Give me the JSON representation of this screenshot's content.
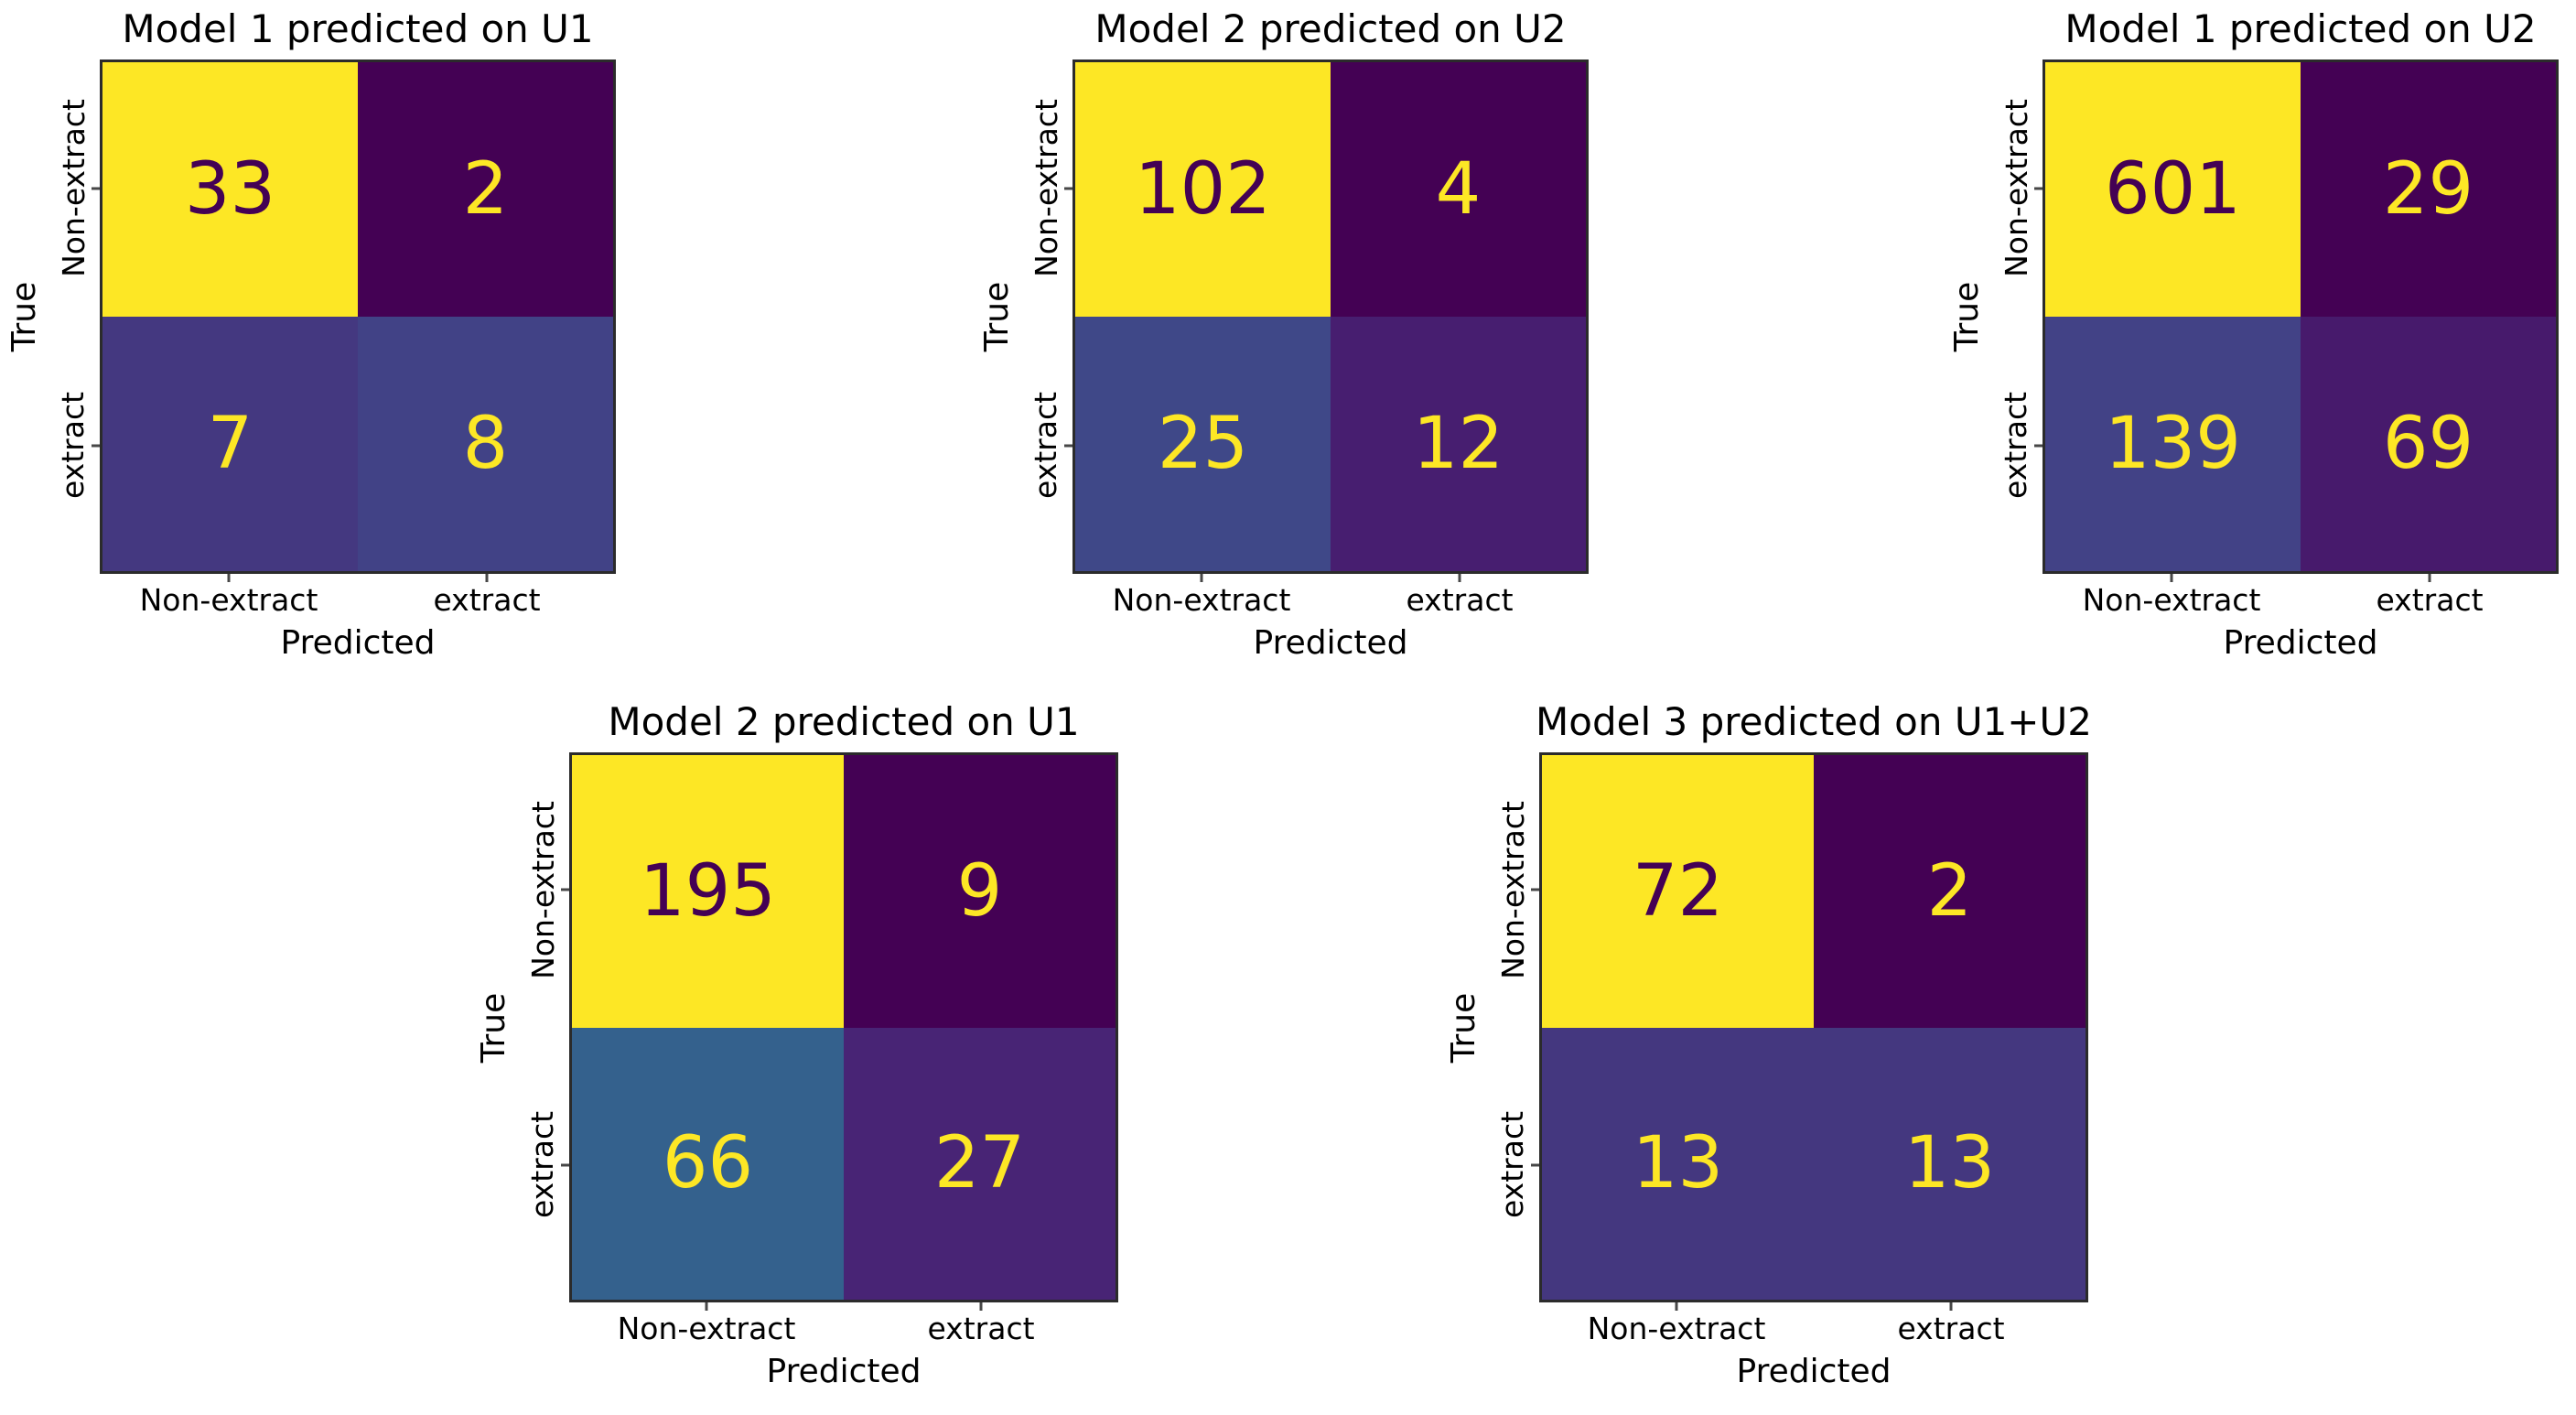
{
  "figure": {
    "background": "#ffffff",
    "text_color": "#000000",
    "colormap": "viridis",
    "accent_max": "#fde725",
    "accent_min": "#440154"
  },
  "chart_data": [
    {
      "type": "heatmap",
      "title": "Model 1 predicted on U1",
      "xlabel": "Predicted",
      "ylabel": "True",
      "x_tick_labels": [
        "Non-extract",
        "extract"
      ],
      "y_tick_labels": [
        "Non-extract",
        "extract"
      ],
      "values": [
        [
          33,
          2
        ],
        [
          7,
          8
        ]
      ],
      "cell_colors": [
        [
          "#fde725",
          "#440154"
        ],
        [
          "#443880",
          "#414286"
        ]
      ],
      "text_colors": [
        [
          "#440154",
          "#fde725"
        ],
        [
          "#fde725",
          "#fde725"
        ]
      ]
    },
    {
      "type": "heatmap",
      "title": "Model 2 predicted on U2",
      "xlabel": "Predicted",
      "ylabel": "True",
      "x_tick_labels": [
        "Non-extract",
        "extract"
      ],
      "y_tick_labels": [
        "Non-extract",
        "extract"
      ],
      "values": [
        [
          102,
          4
        ],
        [
          25,
          12
        ]
      ],
      "cell_colors": [
        [
          "#fde725",
          "#440154"
        ],
        [
          "#3f4888",
          "#471e70"
        ]
      ],
      "text_colors": [
        [
          "#440154",
          "#fde725"
        ],
        [
          "#fde725",
          "#fde725"
        ]
      ]
    },
    {
      "type": "heatmap",
      "title": "Model 1 predicted on U2",
      "xlabel": "Predicted",
      "ylabel": "True",
      "x_tick_labels": [
        "Non-extract",
        "extract"
      ],
      "y_tick_labels": [
        "Non-extract",
        "extract"
      ],
      "values": [
        [
          601,
          29
        ],
        [
          139,
          69
        ]
      ],
      "cell_colors": [
        [
          "#fde725",
          "#440154"
        ],
        [
          "#424286",
          "#471a6c"
        ]
      ],
      "text_colors": [
        [
          "#440154",
          "#fde725"
        ],
        [
          "#fde725",
          "#fde725"
        ]
      ]
    },
    {
      "type": "heatmap",
      "title": "Model 2 predicted on U1",
      "xlabel": "Predicted",
      "ylabel": "True",
      "x_tick_labels": [
        "Non-extract",
        "extract"
      ],
      "y_tick_labels": [
        "Non-extract",
        "extract"
      ],
      "values": [
        [
          195,
          9
        ],
        [
          66,
          27
        ]
      ],
      "cell_colors": [
        [
          "#fde725",
          "#440154"
        ],
        [
          "#34618d",
          "#482475"
        ]
      ],
      "text_colors": [
        [
          "#440154",
          "#fde725"
        ],
        [
          "#fde725",
          "#fde725"
        ]
      ]
    },
    {
      "type": "heatmap",
      "title": "Model 3 predicted on U1+U2",
      "xlabel": "Predicted",
      "ylabel": "True",
      "x_tick_labels": [
        "Non-extract",
        "extract"
      ],
      "y_tick_labels": [
        "Non-extract",
        "extract"
      ],
      "values": [
        [
          72,
          2
        ],
        [
          13,
          13
        ]
      ],
      "cell_colors": [
        [
          "#fde725",
          "#440154"
        ],
        [
          "#44377f",
          "#44377f"
        ]
      ],
      "text_colors": [
        [
          "#440154",
          "#fde725"
        ],
        [
          "#fde725",
          "#fde725"
        ]
      ]
    }
  ]
}
